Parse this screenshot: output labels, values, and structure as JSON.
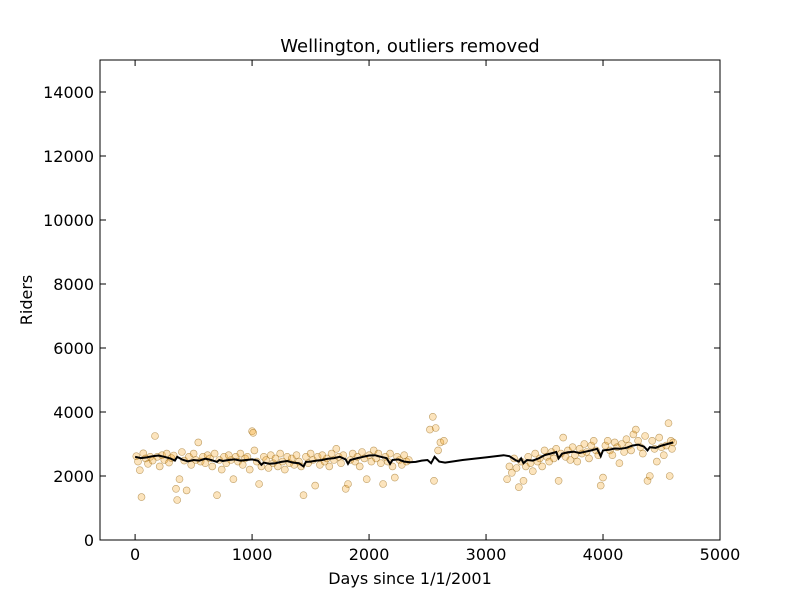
{
  "chart_data": {
    "type": "scatter",
    "title": "Wellington, outliers removed",
    "xlabel": "Days since 1/1/2001",
    "ylabel": "Riders",
    "xlim": [
      -300,
      5000
    ],
    "ylim": [
      0,
      15000
    ],
    "xticks": [
      0,
      1000,
      2000,
      3000,
      4000,
      5000
    ],
    "yticks": [
      0,
      2000,
      4000,
      6000,
      8000,
      10000,
      12000,
      14000
    ],
    "grid": false,
    "colors": {
      "scatter_fill": "#f5a623",
      "scatter_edge": "#8a5a00",
      "trend_line": "#000000"
    },
    "series": [
      {
        "type": "scatter",
        "points": [
          [
            10,
            2620
          ],
          [
            25,
            2450
          ],
          [
            40,
            2180
          ],
          [
            55,
            1340
          ],
          [
            70,
            2710
          ],
          [
            90,
            2550
          ],
          [
            110,
            2380
          ],
          [
            130,
            2600
          ],
          [
            150,
            2480
          ],
          [
            170,
            3250
          ],
          [
            190,
            2600
          ],
          [
            210,
            2300
          ],
          [
            230,
            2650
          ],
          [
            250,
            2500
          ],
          [
            270,
            2700
          ],
          [
            290,
            2420
          ],
          [
            310,
            2560
          ],
          [
            330,
            2640
          ],
          [
            350,
            1600
          ],
          [
            360,
            1250
          ],
          [
            380,
            1900
          ],
          [
            400,
            2750
          ],
          [
            420,
            2480
          ],
          [
            440,
            1550
          ],
          [
            460,
            2600
          ],
          [
            480,
            2350
          ],
          [
            500,
            2700
          ],
          [
            520,
            2500
          ],
          [
            540,
            3050
          ],
          [
            560,
            2450
          ],
          [
            580,
            2600
          ],
          [
            600,
            2400
          ],
          [
            620,
            2650
          ],
          [
            640,
            2550
          ],
          [
            660,
            2300
          ],
          [
            680,
            2700
          ],
          [
            700,
            1400
          ],
          [
            720,
            2500
          ],
          [
            740,
            2200
          ],
          [
            760,
            2600
          ],
          [
            780,
            2400
          ],
          [
            800,
            2650
          ],
          [
            820,
            2500
          ],
          [
            840,
            1900
          ],
          [
            860,
            2600
          ],
          [
            880,
            2450
          ],
          [
            900,
            2700
          ],
          [
            920,
            2350
          ],
          [
            940,
            2550
          ],
          [
            960,
            2600
          ],
          [
            980,
            2200
          ],
          [
            1000,
            3400
          ],
          [
            1010,
            3350
          ],
          [
            1020,
            2800
          ],
          [
            1040,
            2450
          ],
          [
            1060,
            1750
          ],
          [
            1080,
            2300
          ],
          [
            1100,
            2600
          ],
          [
            1120,
            2500
          ],
          [
            1140,
            2250
          ],
          [
            1160,
            2650
          ],
          [
            1180,
            2400
          ],
          [
            1200,
            2550
          ],
          [
            1220,
            2300
          ],
          [
            1240,
            2700
          ],
          [
            1260,
            2450
          ],
          [
            1280,
            2200
          ],
          [
            1300,
            2600
          ],
          [
            1320,
            2400
          ],
          [
            1340,
            2550
          ],
          [
            1360,
            2350
          ],
          [
            1380,
            2650
          ],
          [
            1400,
            2450
          ],
          [
            1420,
            2300
          ],
          [
            1440,
            1400
          ],
          [
            1460,
            2600
          ],
          [
            1480,
            2400
          ],
          [
            1500,
            2700
          ],
          [
            1520,
            2500
          ],
          [
            1540,
            1700
          ],
          [
            1560,
            2600
          ],
          [
            1580,
            2350
          ],
          [
            1600,
            2650
          ],
          [
            1620,
            2450
          ],
          [
            1640,
            2550
          ],
          [
            1660,
            2300
          ],
          [
            1680,
            2700
          ],
          [
            1700,
            2500
          ],
          [
            1720,
            2850
          ],
          [
            1740,
            2600
          ],
          [
            1760,
            2400
          ],
          [
            1780,
            2650
          ],
          [
            1800,
            1600
          ],
          [
            1820,
            1750
          ],
          [
            1840,
            2500
          ],
          [
            1860,
            2700
          ],
          [
            1880,
            2450
          ],
          [
            1900,
            2600
          ],
          [
            1920,
            2300
          ],
          [
            1940,
            2750
          ],
          [
            1960,
            2550
          ],
          [
            1980,
            1900
          ],
          [
            2000,
            2650
          ],
          [
            2020,
            2450
          ],
          [
            2040,
            2800
          ],
          [
            2060,
            2550
          ],
          [
            2080,
            2700
          ],
          [
            2100,
            2400
          ],
          [
            2120,
            1750
          ],
          [
            2140,
            2600
          ],
          [
            2160,
            2450
          ],
          [
            2180,
            2700
          ],
          [
            2200,
            2300
          ],
          [
            2220,
            1950
          ],
          [
            2240,
            2600
          ],
          [
            2260,
            2500
          ],
          [
            2280,
            2350
          ],
          [
            2300,
            2650
          ],
          [
            2320,
            2450
          ],
          [
            2340,
            2500
          ],
          [
            2520,
            3450
          ],
          [
            2545,
            3850
          ],
          [
            2555,
            1850
          ],
          [
            2570,
            3500
          ],
          [
            2590,
            2800
          ],
          [
            2610,
            3050
          ],
          [
            2640,
            3100
          ],
          [
            3180,
            1900
          ],
          [
            3200,
            2300
          ],
          [
            3220,
            2100
          ],
          [
            3240,
            2550
          ],
          [
            3260,
            2250
          ],
          [
            3280,
            1650
          ],
          [
            3300,
            2450
          ],
          [
            3320,
            1850
          ],
          [
            3340,
            2300
          ],
          [
            3360,
            2600
          ],
          [
            3380,
            2400
          ],
          [
            3400,
            2150
          ],
          [
            3420,
            2700
          ],
          [
            3440,
            2450
          ],
          [
            3460,
            2550
          ],
          [
            3480,
            2300
          ],
          [
            3500,
            2800
          ],
          [
            3520,
            2600
          ],
          [
            3540,
            2450
          ],
          [
            3560,
            2750
          ],
          [
            3580,
            2550
          ],
          [
            3600,
            2850
          ],
          [
            3620,
            1850
          ],
          [
            3640,
            2700
          ],
          [
            3660,
            3200
          ],
          [
            3680,
            2600
          ],
          [
            3700,
            2800
          ],
          [
            3720,
            2500
          ],
          [
            3740,
            2900
          ],
          [
            3760,
            2650
          ],
          [
            3780,
            2450
          ],
          [
            3800,
            2850
          ],
          [
            3820,
            2700
          ],
          [
            3840,
            3000
          ],
          [
            3860,
            2750
          ],
          [
            3880,
            2550
          ],
          [
            3900,
            2950
          ],
          [
            3920,
            3100
          ],
          [
            3940,
            2800
          ],
          [
            3960,
            2650
          ],
          [
            3980,
            1700
          ],
          [
            4000,
            1950
          ],
          [
            4020,
            2950
          ],
          [
            4040,
            3100
          ],
          [
            4060,
            2800
          ],
          [
            4080,
            2650
          ],
          [
            4100,
            3050
          ],
          [
            4120,
            2900
          ],
          [
            4140,
            2400
          ],
          [
            4160,
            3000
          ],
          [
            4180,
            2750
          ],
          [
            4200,
            3150
          ],
          [
            4220,
            2950
          ],
          [
            4240,
            2800
          ],
          [
            4260,
            3300
          ],
          [
            4280,
            3450
          ],
          [
            4300,
            3100
          ],
          [
            4320,
            2900
          ],
          [
            4340,
            2700
          ],
          [
            4360,
            3250
          ],
          [
            4380,
            1850
          ],
          [
            4400,
            2000
          ],
          [
            4420,
            3100
          ],
          [
            4440,
            2850
          ],
          [
            4460,
            2450
          ],
          [
            4480,
            3200
          ],
          [
            4500,
            2900
          ],
          [
            4520,
            2650
          ],
          [
            4540,
            2950
          ],
          [
            4560,
            3650
          ],
          [
            4570,
            2000
          ],
          [
            4580,
            3100
          ],
          [
            4590,
            2850
          ],
          [
            4600,
            3050
          ]
        ]
      },
      {
        "type": "line",
        "points": [
          [
            0,
            2600
          ],
          [
            50,
            2560
          ],
          [
            100,
            2580
          ],
          [
            150,
            2620
          ],
          [
            200,
            2640
          ],
          [
            250,
            2600
          ],
          [
            300,
            2550
          ],
          [
            340,
            2480
          ],
          [
            360,
            2600
          ],
          [
            400,
            2520
          ],
          [
            450,
            2460
          ],
          [
            500,
            2500
          ],
          [
            550,
            2480
          ],
          [
            600,
            2540
          ],
          [
            650,
            2500
          ],
          [
            700,
            2440
          ],
          [
            720,
            2500
          ],
          [
            750,
            2470
          ],
          [
            800,
            2500
          ],
          [
            850,
            2520
          ],
          [
            900,
            2480
          ],
          [
            950,
            2500
          ],
          [
            1000,
            2520
          ],
          [
            1050,
            2480
          ],
          [
            1080,
            2350
          ],
          [
            1100,
            2420
          ],
          [
            1150,
            2380
          ],
          [
            1200,
            2400
          ],
          [
            1250,
            2440
          ],
          [
            1300,
            2470
          ],
          [
            1350,
            2420
          ],
          [
            1400,
            2400
          ],
          [
            1440,
            2300
          ],
          [
            1460,
            2440
          ],
          [
            1500,
            2450
          ],
          [
            1550,
            2480
          ],
          [
            1600,
            2500
          ],
          [
            1650,
            2540
          ],
          [
            1700,
            2560
          ],
          [
            1750,
            2600
          ],
          [
            1800,
            2520
          ],
          [
            1820,
            2380
          ],
          [
            1840,
            2500
          ],
          [
            1900,
            2560
          ],
          [
            1950,
            2600
          ],
          [
            2000,
            2640
          ],
          [
            2050,
            2650
          ],
          [
            2100,
            2600
          ],
          [
            2150,
            2560
          ],
          [
            2180,
            2380
          ],
          [
            2200,
            2500
          ],
          [
            2250,
            2520
          ],
          [
            2300,
            2450
          ],
          [
            2350,
            2430
          ],
          [
            2400,
            2440
          ],
          [
            2450,
            2480
          ],
          [
            2500,
            2500
          ],
          [
            2530,
            2400
          ],
          [
            2560,
            2600
          ],
          [
            2600,
            2450
          ],
          [
            2650,
            2420
          ],
          [
            2800,
            2500
          ],
          [
            3000,
            2580
          ],
          [
            3150,
            2650
          ],
          [
            3200,
            2620
          ],
          [
            3250,
            2500
          ],
          [
            3280,
            2450
          ],
          [
            3300,
            2550
          ],
          [
            3320,
            2400
          ],
          [
            3350,
            2500
          ],
          [
            3400,
            2480
          ],
          [
            3450,
            2550
          ],
          [
            3500,
            2650
          ],
          [
            3550,
            2700
          ],
          [
            3600,
            2750
          ],
          [
            3620,
            2550
          ],
          [
            3650,
            2700
          ],
          [
            3700,
            2740
          ],
          [
            3750,
            2760
          ],
          [
            3800,
            2720
          ],
          [
            3850,
            2760
          ],
          [
            3900,
            2800
          ],
          [
            3950,
            2850
          ],
          [
            3980,
            2620
          ],
          [
            4000,
            2800
          ],
          [
            4050,
            2820
          ],
          [
            4100,
            2860
          ],
          [
            4150,
            2850
          ],
          [
            4200,
            2880
          ],
          [
            4250,
            2950
          ],
          [
            4300,
            2980
          ],
          [
            4350,
            2920
          ],
          [
            4380,
            2800
          ],
          [
            4400,
            2900
          ],
          [
            4450,
            2880
          ],
          [
            4500,
            2950
          ],
          [
            4550,
            3000
          ],
          [
            4600,
            3050
          ]
        ]
      }
    ]
  }
}
